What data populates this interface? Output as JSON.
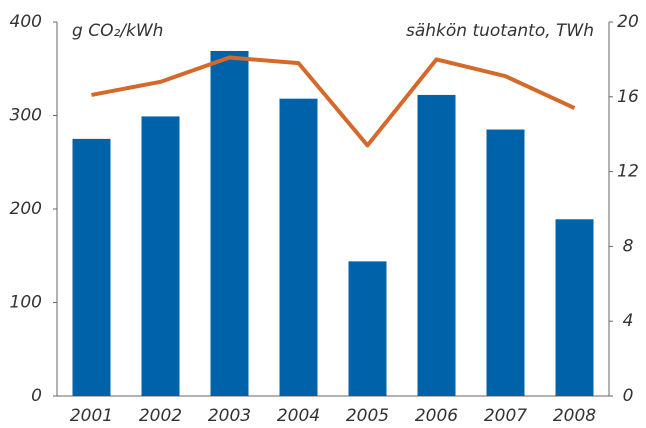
{
  "chart_data": {
    "type": "bar_line",
    "y_label": "g CO₂/kWh",
    "y2_label": "sähkön tuotanto, TWh",
    "categories": [
      "2001",
      "2002",
      "2003",
      "2004",
      "2005",
      "2006",
      "2007",
      "2008"
    ],
    "series": [
      {
        "name": "g CO₂/kWh",
        "type": "bar",
        "color": "#0063a9",
        "values": [
          275,
          299,
          369,
          318,
          144,
          322,
          285,
          189
        ]
      },
      {
        "name": "sähkön tuotanto, TWh",
        "type": "line",
        "axis": "y2",
        "color": "#d4692a",
        "values": [
          16.1,
          16.8,
          18.1,
          17.8,
          13.4,
          18.0,
          17.1,
          15.4
        ]
      }
    ],
    "ylim": [
      0,
      400
    ],
    "yticks": [
      0,
      100,
      200,
      300,
      400
    ],
    "y2lim": [
      0,
      20
    ],
    "y2ticks": [
      0,
      4,
      8,
      12,
      16,
      20
    ]
  }
}
